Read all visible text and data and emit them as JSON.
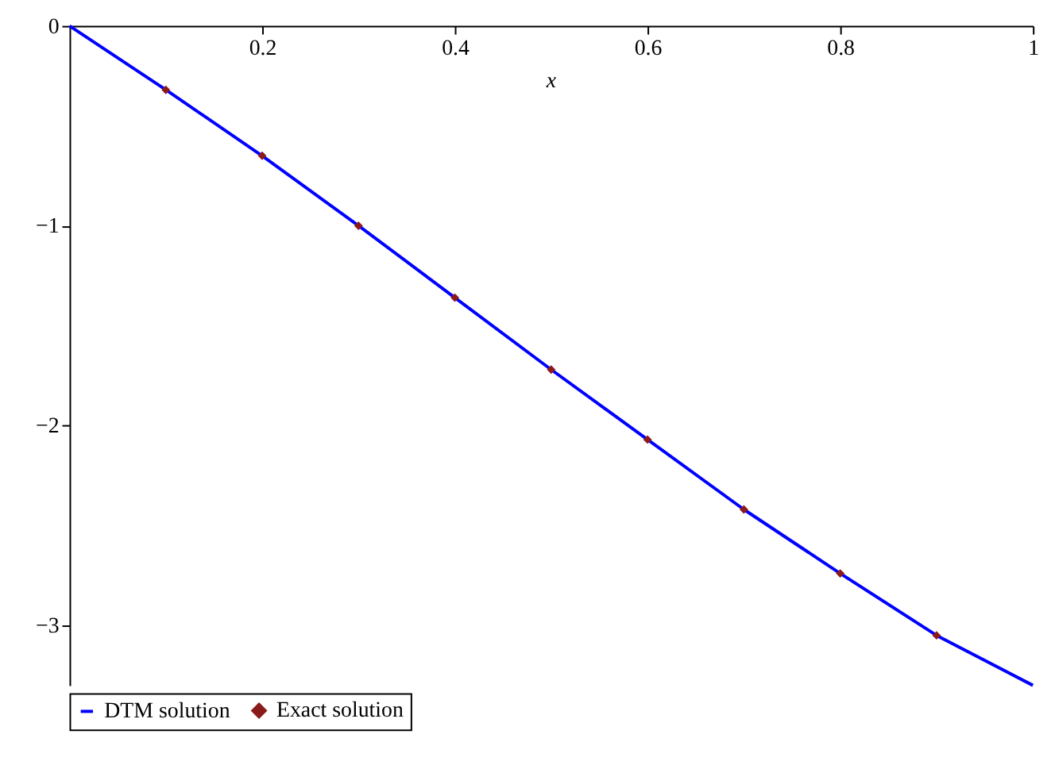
{
  "chart_data": {
    "type": "line",
    "xlabel": "x",
    "x": [
      0,
      0.1,
      0.2,
      0.3,
      0.4,
      0.5,
      0.6,
      0.7,
      0.8,
      0.9,
      1.0
    ],
    "series": [
      {
        "name": "DTM solution",
        "color": "#0000ff",
        "values": [
          0,
          -0.32,
          -0.65,
          -1.0,
          -1.36,
          -1.72,
          -2.07,
          -2.42,
          -2.74,
          -3.05,
          -3.3
        ]
      },
      {
        "name": "Exact solution",
        "type": "scatter",
        "marker": "diamond",
        "color": "#8b1a1a",
        "x": [
          0.1,
          0.2,
          0.3,
          0.4,
          0.5,
          0.6,
          0.7,
          0.8,
          0.9
        ],
        "values": [
          -0.32,
          -0.65,
          -1.0,
          -1.36,
          -1.72,
          -2.07,
          -2.42,
          -2.74,
          -3.05
        ]
      }
    ],
    "xlim": [
      0,
      1
    ],
    "xticks": [
      0.2,
      0.4,
      0.6,
      0.8,
      1
    ],
    "ylim": [
      -3.3,
      0
    ],
    "yticks": [
      0,
      -1,
      -2,
      -3
    ],
    "grid": false,
    "legend": "bottom"
  }
}
